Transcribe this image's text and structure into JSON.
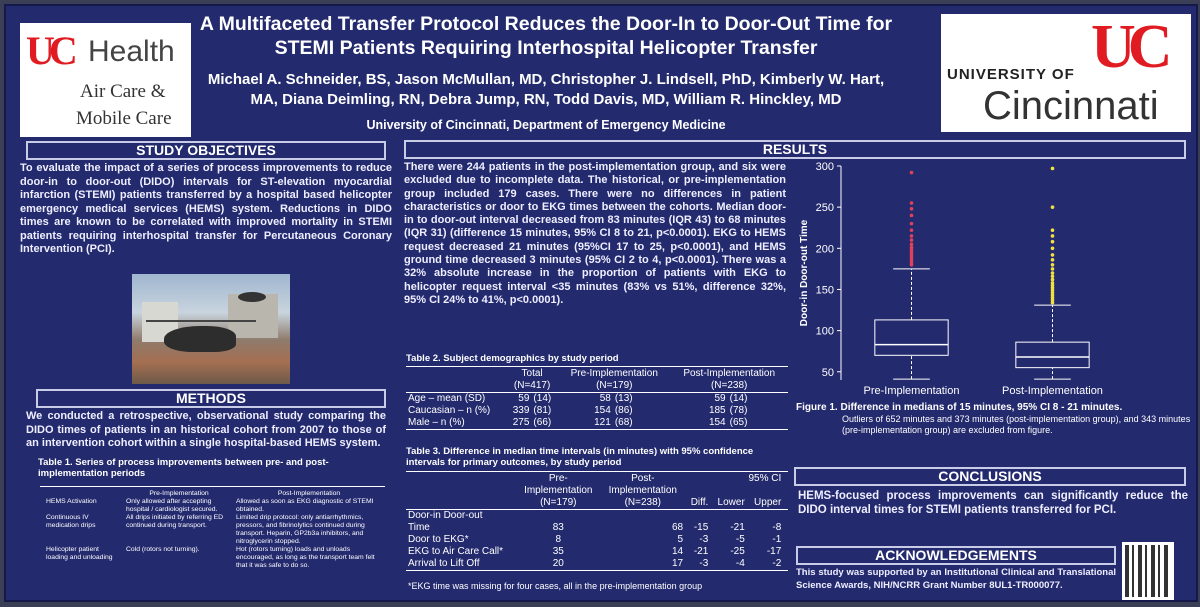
{
  "header": {
    "title_line1": "A Multifaceted Transfer Protocol Reduces the Door-In to Door-Out Time for",
    "title_line2": "STEMI Patients Requiring Interhospital Helicopter Transfer",
    "authors_line1": "Michael A. Schneider, BS, Jason McMullan, MD, Christopher J. Lindsell, PhD, Kimberly W. Hart,",
    "authors_line2": "MA, Diana Deimling, RN, Debra Jump, RN, Todd Davis, MD, William R. Hinckley, MD",
    "affiliation": "University of Cincinnati, Department of Emergency Medicine"
  },
  "logo_left": {
    "mark": "UC",
    "name": "Health",
    "sub1": "Air Care &",
    "sub2": "Mobile Care"
  },
  "logo_right": {
    "mark": "UC",
    "univ": "UNIVERSITY OF",
    "city": "Cincinnati"
  },
  "objectives": {
    "heading": "STUDY OBJECTIVES",
    "text": "To evaluate the impact of a series of process improvements to reduce door-in to door-out (DIDO) intervals for ST-elevation myocardial infarction (STEMI) patients transferred by a hospital based helicopter emergency medical services (HEMS) system. Reductions in DIDO times are known to be correlated with improved mortality in STEMI patients requiring interhospital transfer for Percutaneous Coronary Intervention (PCI)."
  },
  "methods": {
    "heading": "METHODS",
    "text": "We conducted a retrospective, observational study comparing the DIDO times of patients in an historical cohort from 2007 to those of an intervention cohort within a single hospital-based HEMS system.",
    "table_caption": "Table 1. Series of process improvements between pre- and post-implementation periods",
    "table": {
      "headers": [
        "",
        "Pre-Implementation",
        "Post-Implementation"
      ],
      "rows": [
        [
          "HEMS Activation",
          "Only allowed after accepting hospital / cardiologist secured.",
          "Allowed as soon as EKG diagnostic of STEMI obtained."
        ],
        [
          "Continuous IV medication drips",
          "All drips initiated by referring ED continued during transport.",
          "Limited drip protocol: only antiarrhythmics, pressors, and fibrinolytics continued during transport. Heparin, GP2b3a inhibitors, and nitroglycerin stopped."
        ],
        [
          "Helicopter patient loading and unloading",
          "Cold (rotors not turning).",
          "Hot (rotors turning) loads and unloads encouraged, as long as the transport team felt that it was safe to do so."
        ]
      ]
    }
  },
  "results": {
    "heading": "RESULTS",
    "text": "There were 244 patients in the post-implementation group, and six were excluded due to incomplete data. The historical, or pre-implementation group included 179 cases. There were no differences in patient characteristics or door to EKG times between the cohorts. Median door-in to door-out interval decreased from 83 minutes (IQR 43) to 68 minutes (IQR 31) (difference 15 minutes, 95% CI 8 to 21, p<0.0001). EKG to HEMS request decreased 21 minutes (95%CI 17 to 25, p<0.0001), and HEMS ground time decreased 3 minutes (95% CI 2 to 4, p<0.0001). There was a 32% absolute increase in the proportion of patients with EKG to helicopter request interval <35 minutes (83% vs 51%, difference 32%, 95% CI 24% to 41%, p<0.0001).",
    "table2": {
      "caption": "Table 2. Subject demographics by study period",
      "col1": "Total",
      "col1b": "(N=417)",
      "col2": "Pre-Implementation",
      "col2b": "(N=179)",
      "col3": "Post-Implementation",
      "col3b": "(N=238)",
      "rows": [
        [
          "Age – mean (SD)",
          "59",
          "(14)",
          "58",
          "(13)",
          "59",
          "(14)"
        ],
        [
          "Caucasian – n (%)",
          "339",
          "(81)",
          "154",
          "(86)",
          "185",
          "(78)"
        ],
        [
          "Male – n (%)",
          "275",
          "(66)",
          "121",
          "(68)",
          "154",
          "(65)"
        ]
      ]
    },
    "table3": {
      "caption": "Table 3. Difference in median time intervals (in minutes) with 95% confidence intervals for primary outcomes, by study period",
      "h_pre": "Pre-",
      "h_pre2": "Implementation",
      "h_pre3": "(N=179)",
      "h_post": "Post-",
      "h_post2": "Implementation",
      "h_post3": "(N=238)",
      "h_ci": "95% CI",
      "h_diff": "Diff.",
      "h_lower": "Lower",
      "h_upper": "Upper",
      "rows": [
        [
          "Door-in Door-out",
          "",
          "",
          "",
          "",
          ""
        ],
        [
          "Time",
          "83",
          "68",
          "-15",
          "-21",
          "-8"
        ],
        [
          "Door to EKG*",
          "8",
          "5",
          "-3",
          "-5",
          "-1"
        ],
        [
          "EKG to Air Care Call*",
          "35",
          "14",
          "-21",
          "-25",
          "-17"
        ],
        [
          "Arrival to Lift Off",
          "20",
          "17",
          "-3",
          "-4",
          "-2"
        ]
      ],
      "footnote": "*EKG time was missing for four cases, all in the pre-implementation group"
    },
    "figure_caption_bold": "Figure 1.",
    "figure_caption": "Difference in medians of 15 minutes, 95% CI 8 - 21 minutes.",
    "figure_note": "Outliers of 652 minutes and 373 minutes (post-implementation group), and 343 minutes (pre-implementation group) are excluded from figure."
  },
  "chart_data": {
    "type": "box",
    "ylabel": "Door-in Door-out Time",
    "ylim": [
      40,
      300
    ],
    "yticks": [
      50,
      100,
      150,
      200,
      250,
      300
    ],
    "categories": [
      "Pre-Implementation",
      "Post-Implementation"
    ],
    "boxes": [
      {
        "name": "Pre-Implementation",
        "whisker_low": 41,
        "q1": 70,
        "median": 83,
        "q3": 113,
        "whisker_high": 175,
        "outlier_color": "#e0405a",
        "outliers": [
          180,
          183,
          186,
          189,
          192,
          195,
          198,
          201,
          205,
          210,
          215,
          222,
          230,
          240,
          248,
          255,
          292
        ]
      },
      {
        "name": "Post-Implementation",
        "whisker_low": 41,
        "q1": 55,
        "median": 68,
        "q3": 86,
        "whisker_high": 131,
        "outlier_color": "#f0e040",
        "outliers": [
          134,
          137,
          140,
          143,
          146,
          149,
          152,
          155,
          158,
          162,
          166,
          170,
          175,
          180,
          186,
          192,
          200,
          208,
          215,
          222,
          250,
          297
        ]
      }
    ]
  },
  "conclusions": {
    "heading": "CONCLUSIONS",
    "text": "HEMS-focused process improvements can significantly reduce the DIDO interval times for STEMI patients transferred for PCI."
  },
  "acknowledgements": {
    "heading": "ACKNOWLEDGEMENTS",
    "text": "This study was supported by an Institutional Clinical and Translational Science Awards, NIH/NCRR Grant Number 8UL1-TR000077."
  }
}
